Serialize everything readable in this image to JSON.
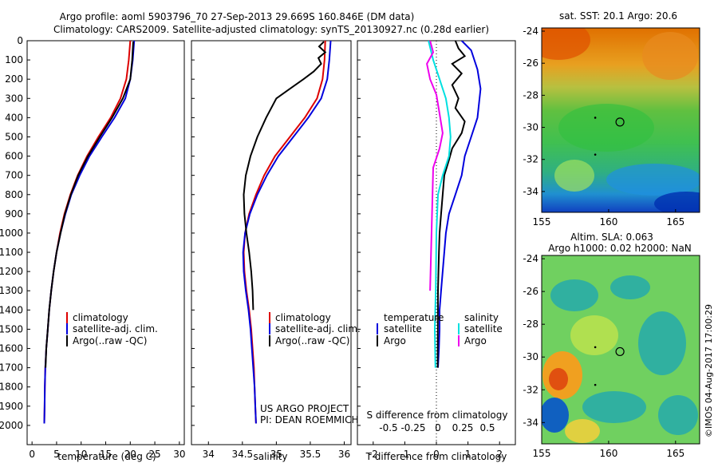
{
  "header": {
    "title": "Argo profile: aoml 5903796_70 27-Sep-2013 29.669S 160.846E (DM data)",
    "subtitle": "Climatology: CARS2009. Satellite-adjusted climatology: synTS_20130927.nc (0.28d earlier)"
  },
  "colors": {
    "clim": "#dd0000",
    "sat": "#0000dd",
    "argo": "#000000",
    "sal_sat": "#00e0e0",
    "sal_argo": "#ee00ee"
  },
  "chart_data": [
    {
      "id": "temperature",
      "type": "line",
      "xlabel": "temperature (deg C)",
      "ylabel": "",
      "xlim": [
        -1,
        31
      ],
      "ylim": [
        2100,
        0
      ],
      "xticks": [
        0,
        5,
        10,
        15,
        20,
        25,
        30
      ],
      "yticks": [
        0,
        100,
        200,
        300,
        400,
        500,
        600,
        700,
        800,
        900,
        1000,
        1100,
        1200,
        1300,
        1400,
        1500,
        1600,
        1700,
        1800,
        1900,
        2000
      ],
      "legend": [
        "climatology",
        "satellite-adj. clim.",
        "Argo(..raw -QC)"
      ],
      "series": [
        {
          "name": "climatology",
          "color": "clim",
          "x": [
            20.0,
            19.7,
            19.2,
            18.0,
            16.0,
            13.5,
            11.2,
            9.3,
            7.8,
            6.6,
            5.7,
            5.0,
            4.4,
            3.9,
            3.5,
            3.2,
            2.9,
            2.7,
            2.6,
            2.55,
            2.5
          ],
          "y": [
            0,
            100,
            200,
            300,
            400,
            500,
            600,
            700,
            800,
            900,
            1000,
            1100,
            1200,
            1300,
            1400,
            1500,
            1600,
            1700,
            1800,
            1900,
            1990
          ]
        },
        {
          "name": "satellite-adj. clim.",
          "color": "sat",
          "x": [
            20.8,
            20.5,
            20.0,
            19.0,
            16.8,
            14.2,
            11.7,
            9.7,
            8.0,
            6.8,
            5.8,
            5.0,
            4.4,
            3.9,
            3.5,
            3.2,
            2.9,
            2.7,
            2.6,
            2.55,
            2.5
          ],
          "y": [
            0,
            100,
            200,
            300,
            400,
            500,
            600,
            700,
            800,
            900,
            1000,
            1100,
            1200,
            1300,
            1400,
            1500,
            1600,
            1700,
            1800,
            1900,
            1990
          ]
        },
        {
          "name": "Argo(..raw -QC)",
          "color": "argo",
          "x": [
            20.6,
            20.4,
            20.0,
            18.5,
            16.3,
            13.8,
            11.4,
            9.4,
            7.9,
            6.7,
            5.8,
            5.0,
            4.4,
            3.9,
            3.5,
            3.2,
            2.9,
            2.75
          ],
          "y": [
            5,
            100,
            200,
            300,
            400,
            500,
            600,
            700,
            800,
            900,
            1000,
            1100,
            1200,
            1300,
            1400,
            1500,
            1600,
            1700
          ]
        }
      ]
    },
    {
      "id": "salinity",
      "type": "line",
      "xlabel": "salinity",
      "ylabel": "",
      "xlim": [
        33.75,
        36.1
      ],
      "ylim": [
        2100,
        0
      ],
      "xticks": [
        34,
        34.5,
        35,
        35.5,
        36
      ],
      "legend": [
        "climatology",
        "satellite-adj. clim.",
        "Argo(..raw -QC)"
      ],
      "annotations": [
        "US ARGO PROJECT",
        "PI: DEAN ROEMMICH"
      ],
      "series": [
        {
          "name": "climatology",
          "color": "clim",
          "x": [
            35.72,
            35.71,
            35.68,
            35.6,
            35.42,
            35.2,
            34.98,
            34.82,
            34.7,
            34.6,
            34.54,
            34.52,
            34.53,
            34.56,
            34.6,
            34.63,
            34.65,
            34.67,
            34.68,
            34.69,
            34.7
          ],
          "y": [
            0,
            100,
            200,
            300,
            400,
            500,
            600,
            700,
            800,
            900,
            1000,
            1100,
            1200,
            1300,
            1400,
            1500,
            1600,
            1700,
            1800,
            1900,
            1990
          ]
        },
        {
          "name": "satellite-adj. clim.",
          "color": "sat",
          "x": [
            35.8,
            35.78,
            35.75,
            35.66,
            35.47,
            35.25,
            35.03,
            34.86,
            34.72,
            34.61,
            34.54,
            34.51,
            34.52,
            34.55,
            34.59,
            34.62,
            34.64,
            34.66,
            34.68,
            34.69,
            34.7
          ],
          "y": [
            0,
            100,
            200,
            300,
            400,
            500,
            600,
            700,
            800,
            900,
            1000,
            1100,
            1200,
            1300,
            1400,
            1500,
            1600,
            1700,
            1800,
            1900,
            1990
          ]
        },
        {
          "name": "Argo(..raw -QC)",
          "color": "argo",
          "x": [
            35.7,
            35.63,
            35.72,
            35.62,
            35.66,
            35.55,
            35.4,
            35.2,
            35.0,
            34.85,
            34.72,
            34.62,
            34.55,
            34.52,
            34.53,
            34.56,
            34.6,
            34.63,
            34.65,
            34.66
          ],
          "y": [
            5,
            30,
            60,
            90,
            120,
            160,
            200,
            250,
            300,
            400,
            500,
            600,
            700,
            800,
            900,
            1000,
            1100,
            1200,
            1300,
            1400
          ]
        }
      ]
    },
    {
      "id": "differences",
      "type": "line",
      "xlabel": "T difference from climatology",
      "xlabel2": "S difference from climatology",
      "xlim": [
        -2.5,
        2.5
      ],
      "ylim": [
        2100,
        0
      ],
      "xticks": [
        -2,
        -1,
        0,
        1,
        2
      ],
      "xticks_s": [
        -0.5,
        -0.25,
        0,
        0.25,
        0.5
      ],
      "legend_headers": [
        "temperature",
        "salinity"
      ],
      "legend": [
        "satellite",
        "Argo",
        "satellite",
        "Argo"
      ],
      "series": [
        {
          "name": "satellite",
          "group": "temperature",
          "color": "sat",
          "x": [
            0.8,
            1.1,
            1.3,
            1.4,
            1.3,
            1.1,
            0.9,
            0.8,
            0.6,
            0.4,
            0.3,
            0.25,
            0.2,
            0.15,
            0.1,
            0.1,
            0.08,
            0.05
          ],
          "y": [
            0,
            50,
            150,
            250,
            400,
            500,
            600,
            700,
            800,
            900,
            1000,
            1100,
            1200,
            1300,
            1400,
            1500,
            1600,
            1700
          ]
        },
        {
          "name": "Argo",
          "group": "temperature",
          "color": "argo",
          "x": [
            0.6,
            0.7,
            0.9,
            0.5,
            0.8,
            0.5,
            0.7,
            0.6,
            0.9,
            0.8,
            0.5,
            0.4,
            0.25,
            0.2,
            0.15,
            0.1,
            0.08,
            0.05,
            0.04
          ],
          "y": [
            0,
            40,
            80,
            120,
            170,
            230,
            300,
            350,
            420,
            480,
            560,
            620,
            700,
            800,
            900,
            1000,
            1100,
            1300,
            1700
          ]
        },
        {
          "name": "satellite",
          "group": "salinity",
          "color": "sal_sat",
          "x": [
            -0.25,
            -0.1,
            0.1,
            0.3,
            0.4,
            0.45,
            0.4,
            0.2,
            0.05,
            0.0,
            -0.02,
            -0.05,
            -0.03
          ],
          "y": [
            0,
            100,
            200,
            300,
            400,
            500,
            600,
            700,
            800,
            1000,
            1300,
            1500,
            1700
          ]
        },
        {
          "name": "Argo",
          "group": "salinity",
          "color": "sal_argo",
          "x": [
            -0.2,
            -0.1,
            -0.3,
            -0.2,
            0.0,
            0.1,
            0.2,
            0.1,
            -0.1,
            -0.2
          ],
          "y": [
            0,
            60,
            120,
            200,
            280,
            380,
            480,
            560,
            660,
            1300
          ]
        }
      ]
    },
    {
      "id": "sst-map",
      "type": "heatmap",
      "title": "sat. SST: 20.1  Argo: 20.6",
      "xlim": [
        155,
        166.8
      ],
      "ylim": [
        -35.3,
        -23.8
      ],
      "xticks": [
        155,
        160,
        165
      ],
      "yticks": [
        -24,
        -26,
        -28,
        -30,
        -32,
        -34
      ],
      "float_lon": 160.846,
      "float_lat": -29.669,
      "track": [
        [
          159.0,
          -29.4
        ],
        [
          159.0,
          -31.7
        ]
      ]
    },
    {
      "id": "sla-map",
      "type": "heatmap",
      "title": "Altim. SLA: 0.063",
      "subtitle": "Argo h1000: 0.02 h2000: NaN",
      "xlim": [
        155,
        166.8
      ],
      "ylim": [
        -35.3,
        -23.8
      ],
      "xticks": [
        155,
        160,
        165
      ],
      "yticks": [
        -24,
        -26,
        -28,
        -30,
        -32,
        -34
      ],
      "float_lon": 160.846,
      "float_lat": -29.669,
      "track": [
        [
          159.0,
          -29.4
        ],
        [
          159.0,
          -31.7
        ]
      ]
    }
  ],
  "footer": {
    "imos_label": "©IMOS 04-Aug-2017 17:00:29"
  }
}
